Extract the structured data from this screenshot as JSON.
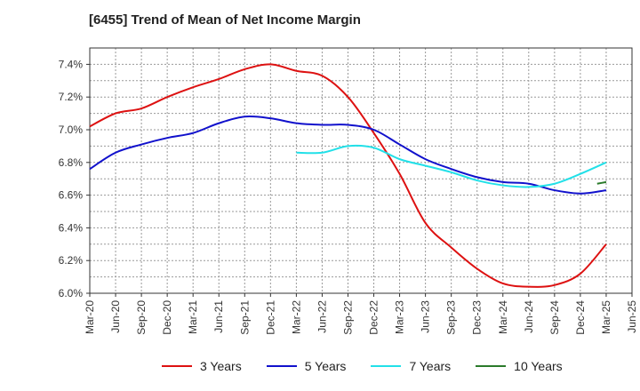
{
  "chart_data": {
    "type": "line",
    "title": "[6455]  Trend of Mean of Net Income Margin",
    "x": [
      "Mar-20",
      "Jun-20",
      "Sep-20",
      "Dec-20",
      "Mar-21",
      "Jun-21",
      "Sep-21",
      "Dec-21",
      "Mar-22",
      "Jun-22",
      "Sep-22",
      "Dec-22",
      "Mar-23",
      "Jun-23",
      "Sep-23",
      "Dec-23",
      "Mar-24",
      "Jun-24",
      "Sep-24",
      "Dec-24",
      "Mar-25",
      "Jun-25"
    ],
    "ylim": [
      6.0,
      7.5
    ],
    "yticks": [
      6.0,
      6.2,
      6.4,
      6.6,
      6.8,
      7.0,
      7.2,
      7.4
    ],
    "ytick_labels": [
      "6.0%",
      "6.2%",
      "6.4%",
      "6.6%",
      "6.8%",
      "7.0%",
      "7.2%",
      "7.4%"
    ],
    "grid": true,
    "legend_position": "bottom",
    "series": [
      {
        "name": "3 Years",
        "color": "#dd1111",
        "values": [
          7.02,
          7.1,
          7.13,
          7.2,
          7.26,
          7.31,
          7.37,
          7.4,
          7.36,
          7.33,
          7.2,
          6.98,
          6.73,
          6.43,
          6.28,
          6.15,
          6.06,
          6.04,
          6.05,
          6.12,
          6.3,
          null
        ]
      },
      {
        "name": "5 Years",
        "color": "#1111cc",
        "values": [
          6.76,
          6.86,
          6.91,
          6.95,
          6.98,
          7.04,
          7.08,
          7.07,
          7.04,
          7.03,
          7.03,
          7.0,
          6.91,
          6.82,
          6.76,
          6.71,
          6.68,
          6.67,
          6.63,
          6.61,
          6.63,
          null
        ]
      },
      {
        "name": "7 Years",
        "color": "#22e0e8",
        "values": [
          null,
          null,
          null,
          null,
          null,
          null,
          null,
          null,
          6.86,
          6.86,
          6.9,
          6.89,
          6.82,
          6.78,
          6.74,
          6.69,
          6.66,
          6.65,
          6.67,
          6.73,
          6.8,
          null
        ]
      },
      {
        "name": "10 Years",
        "color": "#2a7a2a",
        "values": [
          null,
          null,
          null,
          null,
          null,
          null,
          null,
          null,
          null,
          null,
          null,
          null,
          null,
          null,
          null,
          null,
          null,
          null,
          null,
          null,
          6.68,
          null
        ],
        "prev_point": 6.67
      }
    ]
  }
}
